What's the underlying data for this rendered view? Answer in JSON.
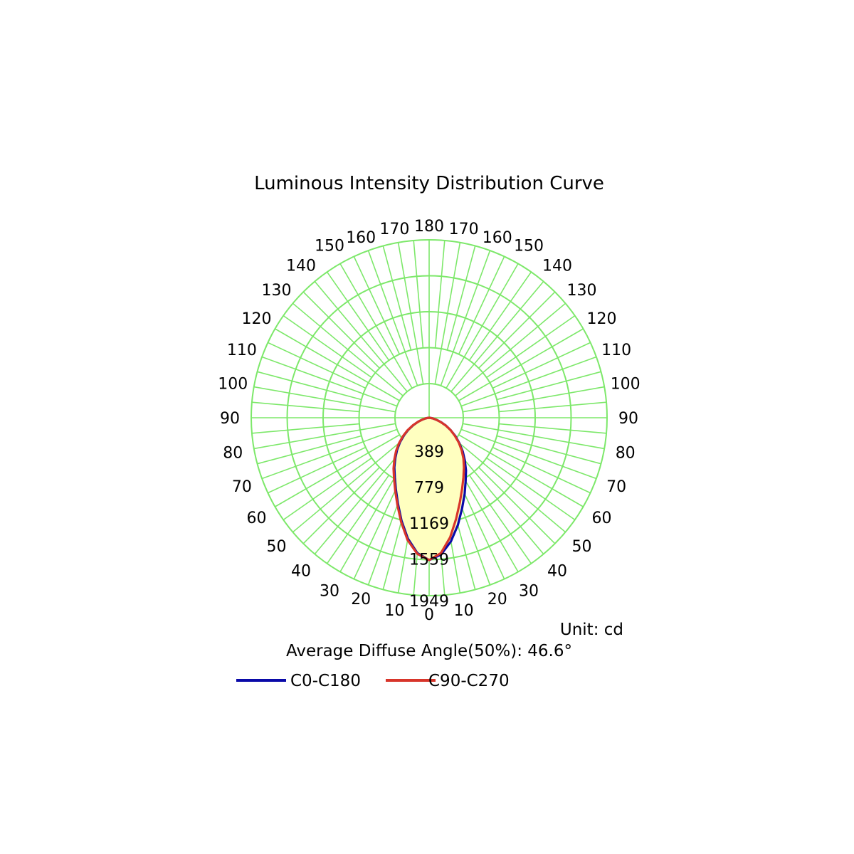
{
  "chart_data": {
    "type": "polar",
    "title": "Luminous Intensity Distribution Curve",
    "unit_label": "Unit: cd",
    "summary": "Average Diffuse Angle(50%): 46.6°",
    "r_max": 1949,
    "ring_labels": [
      "389",
      "779",
      "1169",
      "1559",
      "1949"
    ],
    "angle_labels": [
      "0",
      "10",
      "20",
      "30",
      "40",
      "50",
      "60",
      "70",
      "80",
      "90",
      "100",
      "110",
      "120",
      "130",
      "140",
      "150",
      "160",
      "170",
      "180"
    ],
    "series": [
      {
        "name": "C0-C180",
        "color": "#0a0aa8",
        "angles": [
          0,
          5,
          10,
          15,
          20,
          25,
          30,
          35,
          40,
          45,
          50,
          55,
          60,
          65,
          70,
          75,
          80,
          85,
          90
        ],
        "values_right": [
          1949,
          1880,
          1720,
          1520,
          1320,
          1150,
          1000,
          880,
          760,
          650,
          540,
          440,
          340,
          250,
          170,
          100,
          50,
          15,
          0
        ],
        "values_left": [
          1949,
          1860,
          1680,
          1460,
          1250,
          1080,
          940,
          830,
          720,
          620,
          520,
          420,
          330,
          240,
          160,
          95,
          45,
          12,
          0
        ]
      },
      {
        "name": "C90-C270",
        "color": "#d8352a",
        "angles": [
          0,
          5,
          10,
          15,
          20,
          25,
          30,
          35,
          40,
          45,
          50,
          55,
          60,
          65,
          70,
          75,
          80,
          85,
          90
        ],
        "values_right": [
          1949,
          1860,
          1660,
          1430,
          1230,
          1070,
          940,
          830,
          730,
          630,
          530,
          430,
          340,
          250,
          165,
          95,
          45,
          12,
          0
        ],
        "values_left": [
          1949,
          1870,
          1700,
          1480,
          1270,
          1100,
          960,
          850,
          740,
          640,
          535,
          435,
          340,
          245,
          160,
          95,
          45,
          12,
          0
        ]
      }
    ],
    "colors": {
      "grid": "#7de86a",
      "fill": "#ffffc0",
      "fill_dark": "#d9f5a8"
    }
  }
}
